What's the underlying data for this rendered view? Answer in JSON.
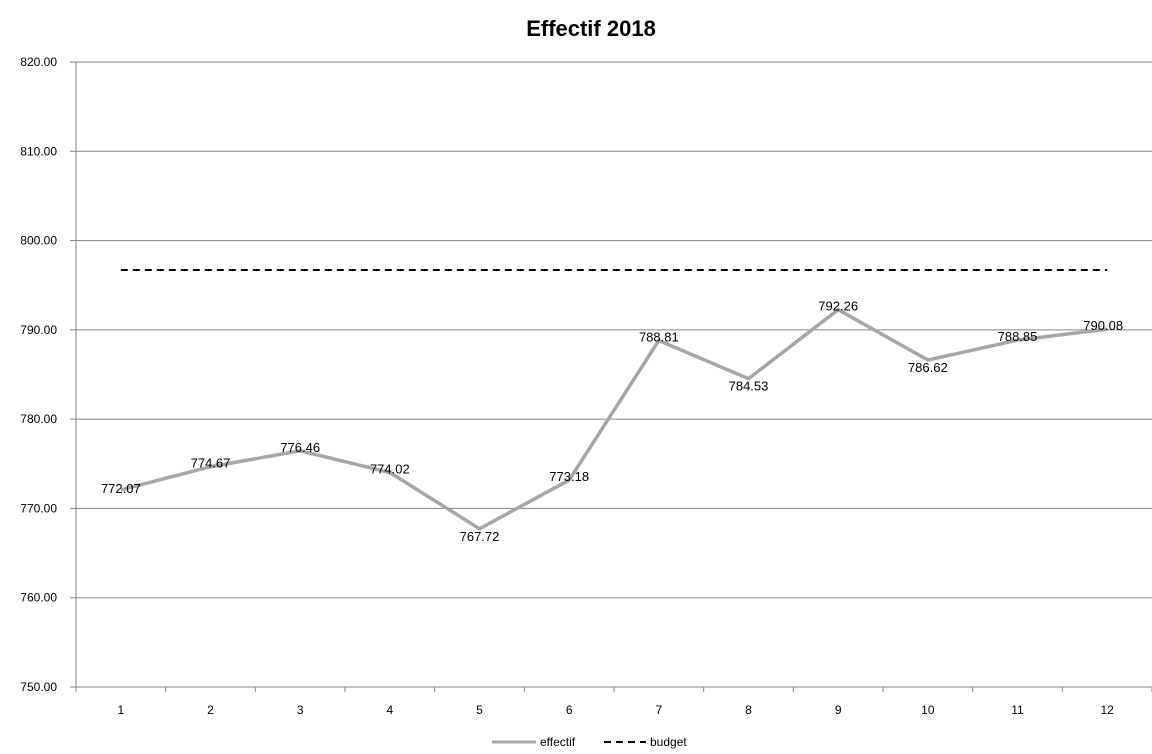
{
  "chart_data": {
    "type": "line",
    "title": "Effectif 2018",
    "categories": [
      "1",
      "2",
      "3",
      "4",
      "5",
      "6",
      "7",
      "8",
      "9",
      "10",
      "11",
      "12"
    ],
    "ylim": [
      750,
      820
    ],
    "yticks": [
      "750.00",
      "760.00",
      "770.00",
      "780.00",
      "790.00",
      "800.00",
      "810.00",
      "820.00"
    ],
    "grid": true,
    "legend_position": "bottom",
    "series": [
      {
        "name": "effectif",
        "values": [
          772.07,
          774.67,
          776.46,
          774.02,
          767.72,
          773.18,
          788.81,
          784.53,
          792.26,
          786.62,
          788.85,
          790.08
        ],
        "labels": [
          "772.07",
          "774.67",
          "776.46",
          "774.02",
          "767.72",
          "773.18",
          "788.81",
          "784.53",
          "792.26",
          "786.62",
          "788.85",
          "790.08"
        ],
        "color": "#a6a6a6",
        "style": "solid"
      },
      {
        "name": "budget",
        "values": [
          796.7,
          796.7,
          796.7,
          796.7,
          796.7,
          796.7,
          796.7,
          796.7,
          796.7,
          796.7,
          796.7,
          796.7
        ],
        "color": "#000000",
        "style": "dashed"
      }
    ]
  }
}
